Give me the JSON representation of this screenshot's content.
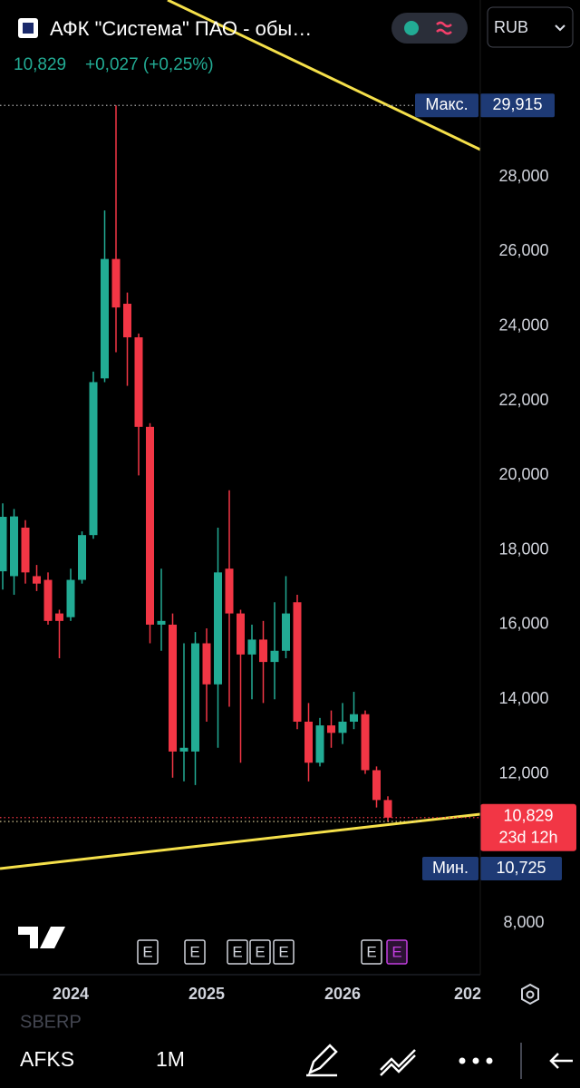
{
  "header": {
    "title": "АФК \"Система\" ПАО - обы…",
    "price": "10,829",
    "change": "+0,027 (+0,25%)",
    "currency": "RUB"
  },
  "chart_data": {
    "type": "candlestick",
    "categories": [
      null,
      null,
      null,
      null,
      null,
      null,
      "2024",
      null,
      null,
      null,
      null,
      null,
      null,
      null,
      null,
      null,
      null,
      null,
      "2025",
      null,
      null,
      null,
      null,
      null,
      null,
      null,
      null,
      null,
      null,
      null,
      "2026",
      null,
      null,
      null,
      null,
      null,
      null,
      null,
      null,
      null,
      null,
      null,
      "202"
    ],
    "open": [
      17430,
      17300,
      18600,
      17300,
      17200,
      16300,
      16200,
      17200,
      18400,
      22600,
      25800,
      24600,
      23700,
      21300,
      16000,
      16000,
      12600,
      12600,
      15500,
      14400,
      17500,
      16300,
      15200,
      15600,
      15000,
      15300,
      16600,
      13400,
      12300,
      13300,
      13100,
      13400,
      13600,
      12100,
      11300,
      null,
      null,
      null,
      null,
      null,
      null,
      null,
      null
    ],
    "high": [
      19250,
      19100,
      18800,
      17600,
      17400,
      16400,
      17500,
      18500,
      22780,
      27100,
      29915,
      24900,
      23800,
      21400,
      17500,
      16300,
      15500,
      15800,
      15900,
      18600,
      19600,
      16400,
      16000,
      16100,
      16600,
      17300,
      16800,
      13900,
      13500,
      13700,
      13900,
      14200,
      13700,
      12200,
      11400,
      null,
      null,
      null,
      null,
      null,
      null,
      null,
      null
    ],
    "low": [
      16940,
      16800,
      17100,
      16900,
      16000,
      15100,
      16100,
      17100,
      18300,
      22500,
      23300,
      22400,
      20000,
      15500,
      15300,
      11900,
      11800,
      11700,
      13400,
      12700,
      13800,
      12300,
      14000,
      13900,
      14000,
      15100,
      13200,
      11800,
      12200,
      12700,
      12800,
      13200,
      12000,
      11100,
      10725,
      null,
      null,
      null,
      null,
      null,
      null,
      null,
      null
    ],
    "close": [
      18890,
      18900,
      17400,
      17100,
      16100,
      16100,
      17200,
      18400,
      22500,
      25800,
      24500,
      23700,
      21300,
      16000,
      16100,
      12600,
      12700,
      15500,
      14400,
      17400,
      16300,
      15200,
      15600,
      15000,
      15300,
      16300,
      13400,
      12300,
      13300,
      13100,
      13400,
      13600,
      12100,
      11300,
      10829,
      null,
      null,
      null,
      null,
      null,
      null,
      null,
      null
    ],
    "up_color": "#22ab94",
    "down_color": "#f23645",
    "ylim": [
      6620,
      32740
    ],
    "yticks": [
      {
        "value": 8000,
        "label": "8,000"
      },
      {
        "value": 12000,
        "label": "12,000"
      },
      {
        "value": 14000,
        "label": "14,000"
      },
      {
        "value": 16000,
        "label": "16,000"
      },
      {
        "value": 18000,
        "label": "18,000"
      },
      {
        "value": 20000,
        "label": "20,000"
      },
      {
        "value": 22000,
        "label": "22,000"
      },
      {
        "value": 24000,
        "label": "24,000"
      },
      {
        "value": 26000,
        "label": "26,000"
      },
      {
        "value": 28000,
        "label": "28,000"
      }
    ],
    "price_lines": {
      "labels": [
        "Макс.",
        null,
        "Мин."
      ],
      "values": [
        29915,
        10829,
        10725
      ],
      "value_labels": [
        "29,915",
        "10,829",
        "10,725"
      ],
      "countdown": "23d 12h"
    },
    "events": [
      "E",
      "E",
      "E",
      "E",
      "E",
      "E",
      "E"
    ]
  },
  "footer": {
    "watermark": "SBERP",
    "symbol": "AFKS",
    "interval": "1M"
  }
}
